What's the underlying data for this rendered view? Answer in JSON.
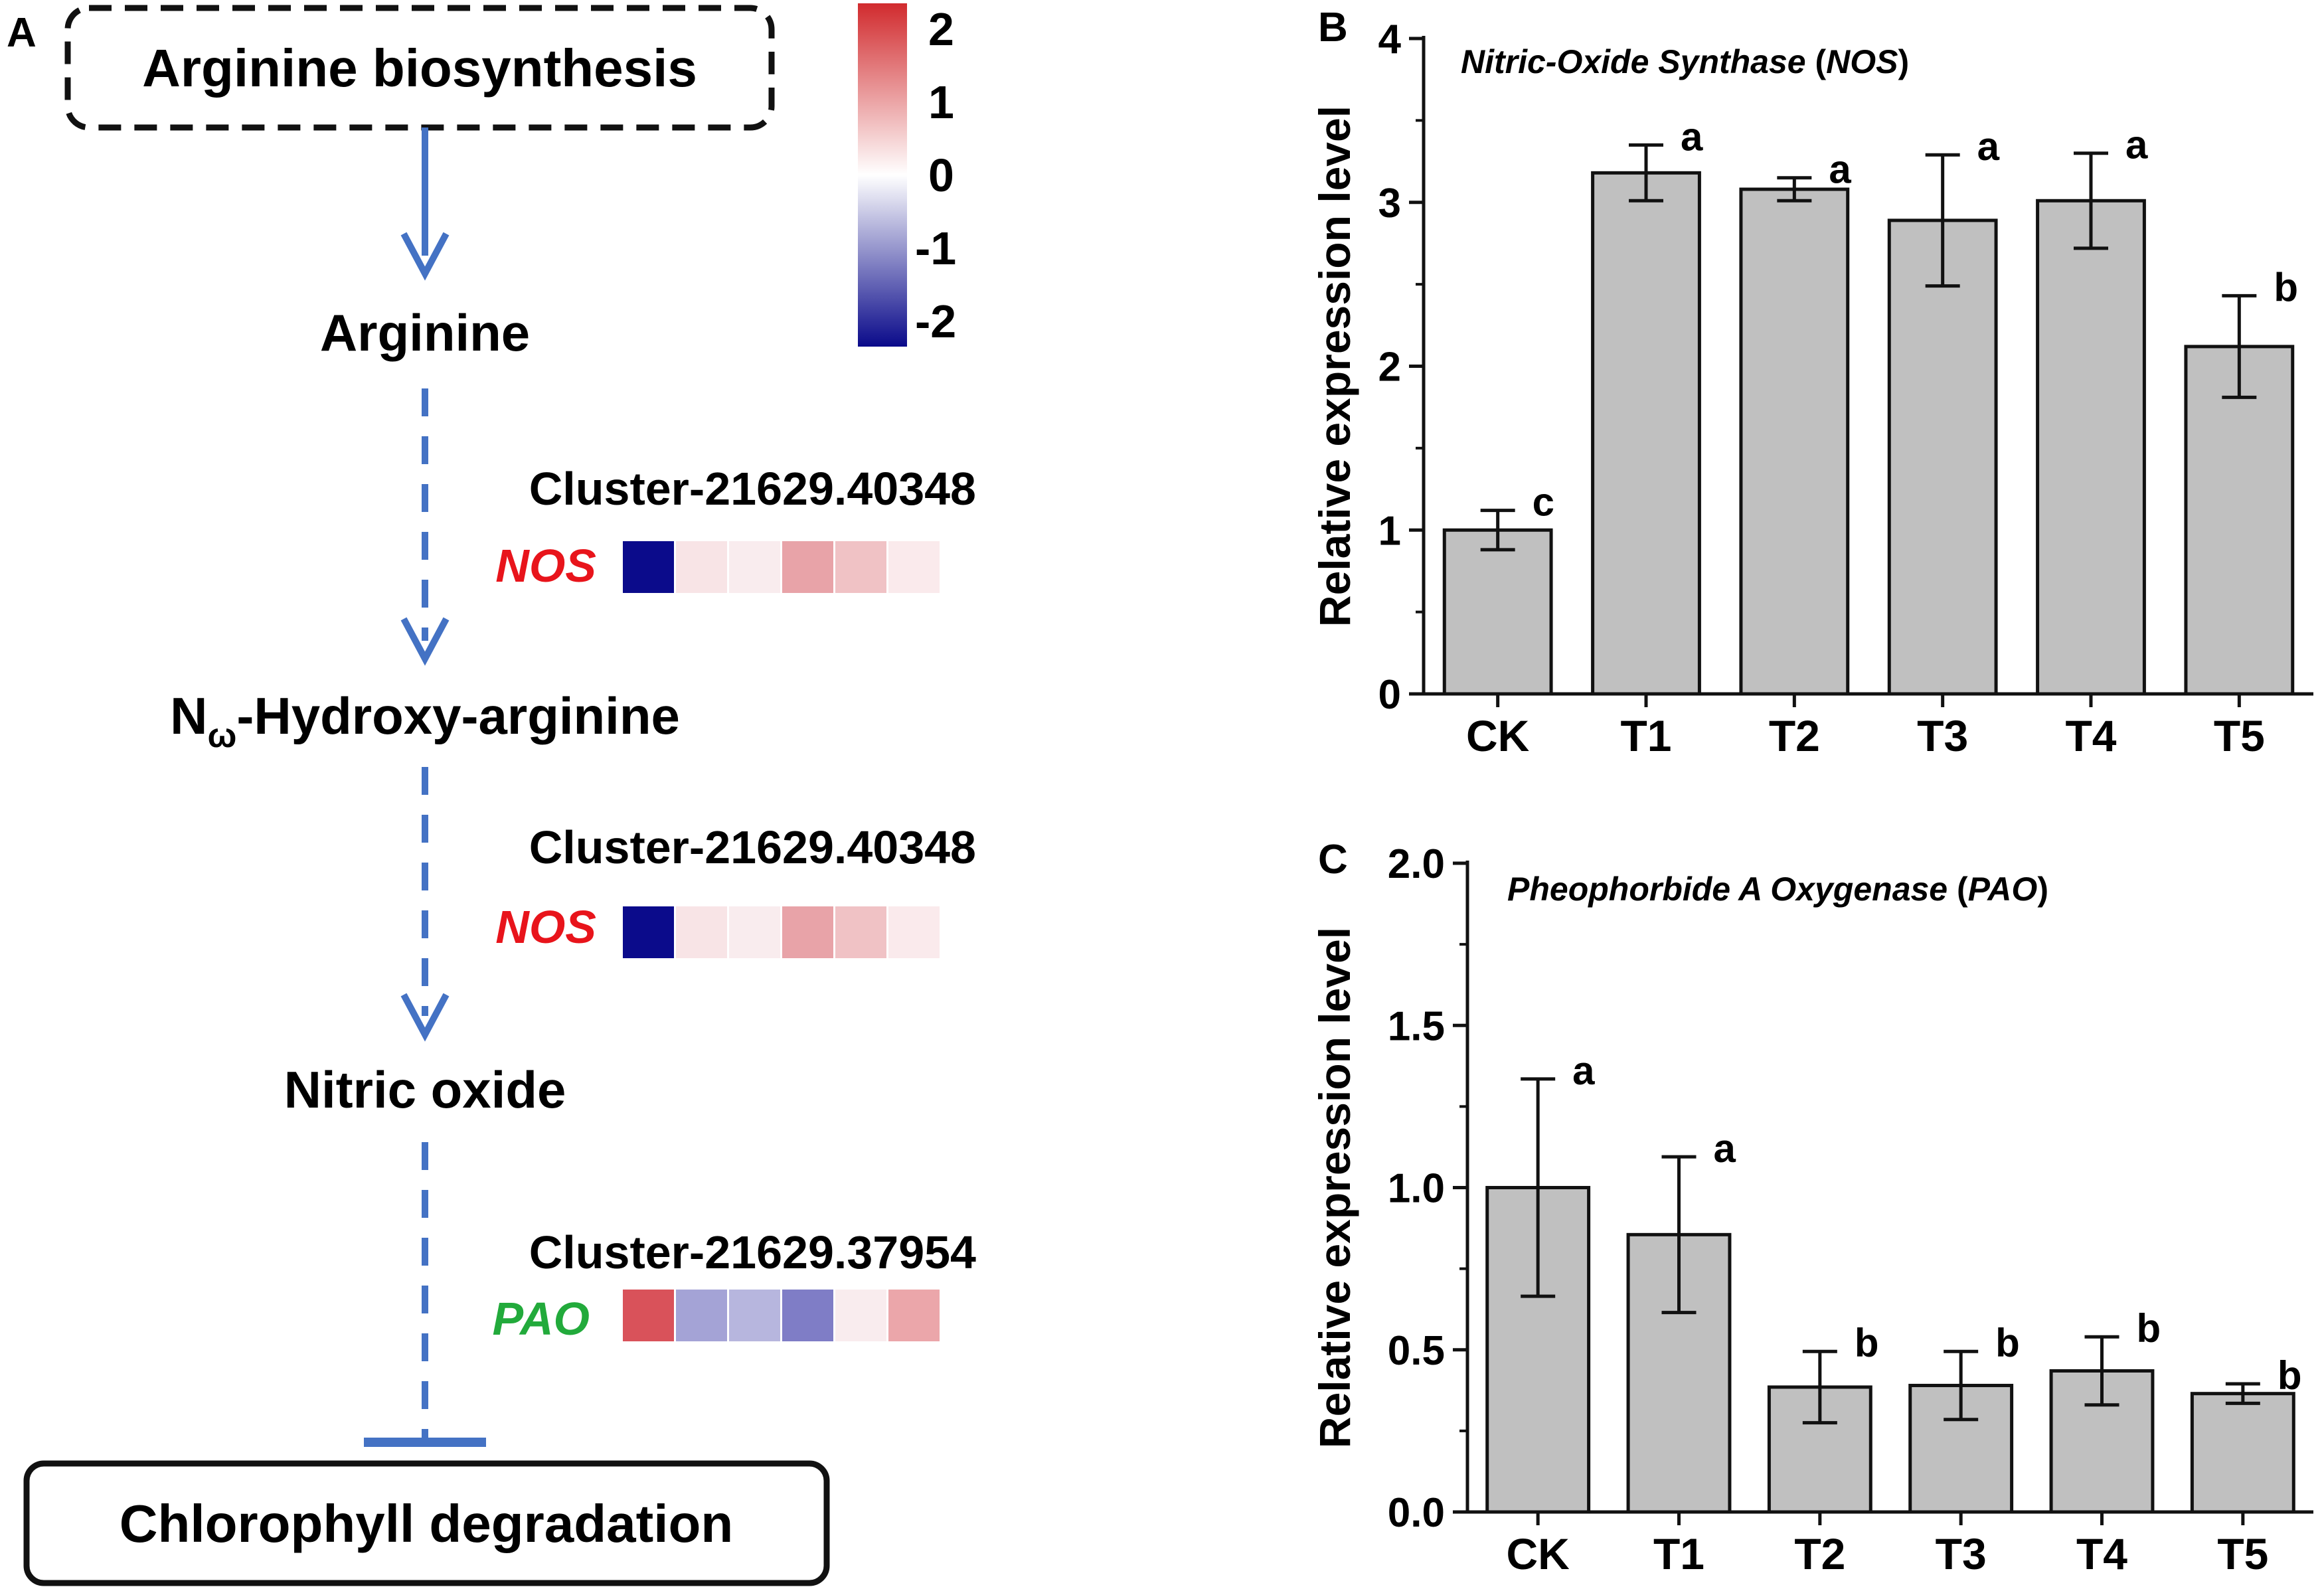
{
  "panel_a": {
    "panel_label": "A",
    "start_box": "Arginine biosynthesis",
    "nodes": {
      "arginine": "Arginine",
      "hydroxy_prefix": "N",
      "hydroxy_sub": "ω",
      "hydroxy_rest": "-Hydroxy-arginine",
      "nitric_oxide": "Nitric oxide"
    },
    "end_box": "Chlorophyll degradation",
    "gene_rows": [
      {
        "cluster": "Cluster-21629.40348",
        "gene": "NOS",
        "gene_color": "#e8141b",
        "cells": [
          "#0b0b8b",
          "#f8e4e6",
          "#f9ecee",
          "#e8a3a8",
          "#f0c2c5",
          "#faeaec"
        ]
      },
      {
        "cluster": "Cluster-21629.40348",
        "gene": "NOS",
        "gene_color": "#e8141b",
        "cells": [
          "#0b0b8b",
          "#f8e4e6",
          "#f9ecee",
          "#e8a3a8",
          "#f0c2c5",
          "#faeaec"
        ]
      },
      {
        "cluster": "Cluster-21629.37954",
        "gene": "PAO",
        "gene_color": "#22aa3b",
        "cells": [
          "#d9525a",
          "#a4a3d6",
          "#b7b6de",
          "#7f7dc6",
          "#f9ecee",
          "#eba6aa"
        ]
      }
    ],
    "colorbar": {
      "ticks": [
        "2",
        "1",
        "0",
        "-1",
        "-2"
      ],
      "colors": {
        "high": "#d12b2e",
        "mid": "#ffffff",
        "low": "#0a0a8a"
      }
    }
  },
  "chart_data": [
    {
      "panel": "B",
      "type": "bar",
      "title": "Nitric-Oxide Synthase",
      "title_abbrev": "NOS",
      "xlabel": "",
      "ylabel": "Relative expression level",
      "categories": [
        "CK",
        "T1",
        "T2",
        "T3",
        "T4",
        "T5"
      ],
      "values": [
        1.0,
        3.18,
        3.08,
        2.89,
        3.01,
        2.12
      ],
      "errors": [
        0.12,
        0.17,
        0.07,
        0.4,
        0.29,
        0.31
      ],
      "letters": [
        "c",
        "a",
        "a",
        "a",
        "a",
        "b"
      ],
      "ylim": [
        0,
        4
      ],
      "yticks": [
        "0",
        "1",
        "2",
        "3",
        "4"
      ],
      "bar_color": "#c0c0c0"
    },
    {
      "panel": "C",
      "type": "bar",
      "title": "Pheophorbide A Oxygenase",
      "title_abbrev": "PAO",
      "xlabel": "",
      "ylabel": "Relative expression level",
      "categories": [
        "CK",
        "T1",
        "T2",
        "T3",
        "T4",
        "T5"
      ],
      "values": [
        1.0,
        0.855,
        0.385,
        0.39,
        0.435,
        0.365
      ],
      "errors": [
        0.335,
        0.24,
        0.11,
        0.105,
        0.105,
        0.03
      ],
      "letters": [
        "a",
        "a",
        "b",
        "b",
        "b",
        "b"
      ],
      "ylim": [
        0,
        2.0
      ],
      "yticks": [
        "0.0",
        "0.5",
        "1.0",
        "1.5",
        "2.0"
      ],
      "bar_color": "#c0c0c0"
    }
  ]
}
